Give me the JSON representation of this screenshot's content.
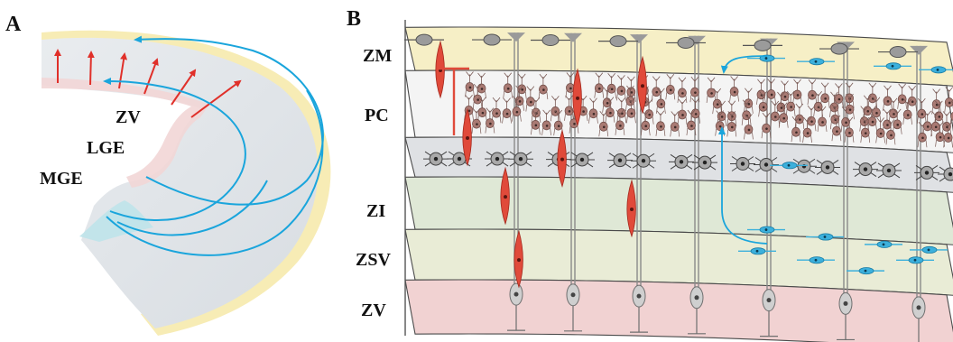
{
  "panel_a": {
    "letter": "A",
    "labels": {
      "zv": "ZV",
      "lge": "LGE",
      "mge": "MGE"
    }
  },
  "panel_b": {
    "letter": "B",
    "layers": [
      {
        "id": "zm",
        "label": "ZM",
        "color": "#f6efc6"
      },
      {
        "id": "pc",
        "label": "PC",
        "color": "#f4f4f4"
      },
      {
        "id": "zn",
        "label": "",
        "color": "#dfe1e4"
      },
      {
        "id": "zi",
        "label": "ZI",
        "color": "#dfe8d6"
      },
      {
        "id": "zsv",
        "label": "ZSV",
        "color": "#e9ecd6"
      },
      {
        "id": "zv",
        "label": "ZV",
        "color": "#f1d2d2"
      }
    ]
  },
  "colors": {
    "radial_arrow": "#e0302a",
    "tangential_arrow": "#1aa5dc",
    "radial_glia": "#8a8a8a",
    "pyramidal_cell": "#a97a73",
    "interneuron": "#3cb0dc",
    "migrating_neuron": "#e04a3a"
  }
}
